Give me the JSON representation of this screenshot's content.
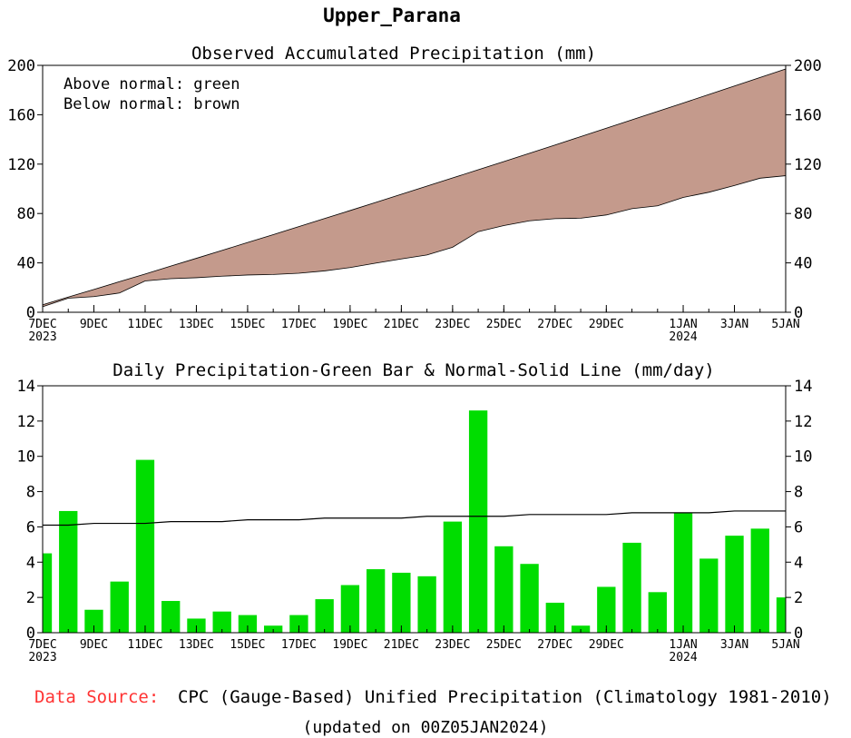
{
  "page_title": "Upper_Parana",
  "colors": {
    "normal_line": "#000000",
    "observed_fill_below": "#c49a8c",
    "daily_bar": "#00dd00",
    "source_label": "#ff3333"
  },
  "x_ticks": [
    {
      "day": 0,
      "label": "7DEC",
      "sub": "2023"
    },
    {
      "day": 2,
      "label": "9DEC",
      "sub": ""
    },
    {
      "day": 4,
      "label": "11DEC",
      "sub": ""
    },
    {
      "day": 6,
      "label": "13DEC",
      "sub": ""
    },
    {
      "day": 8,
      "label": "15DEC",
      "sub": ""
    },
    {
      "day": 10,
      "label": "17DEC",
      "sub": ""
    },
    {
      "day": 12,
      "label": "19DEC",
      "sub": ""
    },
    {
      "day": 14,
      "label": "21DEC",
      "sub": ""
    },
    {
      "day": 16,
      "label": "23DEC",
      "sub": ""
    },
    {
      "day": 18,
      "label": "25DEC",
      "sub": ""
    },
    {
      "day": 20,
      "label": "27DEC",
      "sub": ""
    },
    {
      "day": 22,
      "label": "29DEC",
      "sub": ""
    },
    {
      "day": 25,
      "label": "1JAN",
      "sub": "2024"
    },
    {
      "day": 27,
      "label": "3JAN",
      "sub": ""
    },
    {
      "day": 29,
      "label": "5JAN",
      "sub": ""
    }
  ],
  "chart_data": [
    {
      "type": "area",
      "title": "Observed Accumulated Precipitation (mm)",
      "legend": [
        "Above normal: green",
        "Below normal: brown"
      ],
      "ylim": [
        0,
        200
      ],
      "yticks": [
        0,
        40,
        80,
        120,
        160,
        200
      ],
      "x": [
        "7DEC2023",
        "8DEC",
        "9DEC",
        "10DEC",
        "11DEC",
        "12DEC",
        "13DEC",
        "14DEC",
        "15DEC",
        "16DEC",
        "17DEC",
        "18DEC",
        "19DEC",
        "20DEC",
        "21DEC",
        "22DEC",
        "23DEC",
        "24DEC",
        "25DEC",
        "26DEC",
        "27DEC",
        "28DEC",
        "29DEC",
        "30DEC",
        "31DEC",
        "1JAN2024",
        "2JAN",
        "3JAN",
        "4JAN",
        "5JAN"
      ],
      "series": [
        {
          "name": "Normal",
          "values": [
            6.1,
            12.3,
            18.5,
            24.8,
            31.0,
            37.4,
            43.7,
            50.1,
            56.5,
            62.9,
            69.4,
            75.9,
            82.4,
            89.0,
            95.6,
            102.2,
            108.8,
            115.4,
            122.1,
            128.8,
            135.5,
            142.3,
            149.1,
            155.9,
            162.7,
            169.5,
            176.4,
            183.3,
            190.2,
            197.1
          ]
        },
        {
          "name": "Observed",
          "values": [
            4.5,
            11.4,
            12.7,
            15.6,
            25.4,
            27.2,
            28.0,
            29.2,
            30.2,
            30.6,
            31.6,
            33.5,
            36.2,
            39.8,
            43.2,
            46.4,
            52.7,
            65.3,
            70.2,
            74.1,
            75.8,
            76.2,
            78.8,
            83.9,
            86.2,
            93.0,
            97.2,
            102.7,
            108.6,
            110.6
          ]
        }
      ]
    },
    {
      "type": "bar",
      "title": "Daily Precipitation-Green Bar & Normal-Solid Line (mm/day)",
      "ylim": [
        0,
        14
      ],
      "yticks": [
        0,
        2,
        4,
        6,
        8,
        10,
        12,
        14
      ],
      "categories": [
        "7DEC2023",
        "8DEC",
        "9DEC",
        "10DEC",
        "11DEC",
        "12DEC",
        "13DEC",
        "14DEC",
        "15DEC",
        "16DEC",
        "17DEC",
        "18DEC",
        "19DEC",
        "20DEC",
        "21DEC",
        "22DEC",
        "23DEC",
        "24DEC",
        "25DEC",
        "26DEC",
        "27DEC",
        "28DEC",
        "29DEC",
        "30DEC",
        "31DEC",
        "1JAN2024",
        "2JAN",
        "3JAN",
        "4JAN",
        "5JAN"
      ],
      "series": [
        {
          "name": "Observed",
          "values": [
            4.5,
            6.9,
            1.3,
            2.9,
            9.8,
            1.8,
            0.8,
            1.2,
            1.0,
            0.4,
            1.0,
            1.9,
            2.7,
            3.6,
            3.4,
            3.2,
            6.3,
            12.6,
            4.9,
            3.9,
            1.7,
            0.4,
            2.6,
            5.1,
            2.3,
            6.8,
            4.2,
            5.5,
            5.9,
            2.0
          ]
        },
        {
          "name": "Normal",
          "values": [
            6.1,
            6.1,
            6.2,
            6.2,
            6.2,
            6.3,
            6.3,
            6.3,
            6.4,
            6.4,
            6.4,
            6.5,
            6.5,
            6.5,
            6.5,
            6.6,
            6.6,
            6.6,
            6.6,
            6.7,
            6.7,
            6.7,
            6.7,
            6.8,
            6.8,
            6.8,
            6.8,
            6.9,
            6.9,
            6.9
          ]
        }
      ]
    }
  ],
  "footer": {
    "source_label": "Data Source:",
    "source_text": "CPC (Gauge-Based) Unified Precipitation (Climatology 1981-2010)",
    "updated": "(updated on 00Z05JAN2024)"
  }
}
